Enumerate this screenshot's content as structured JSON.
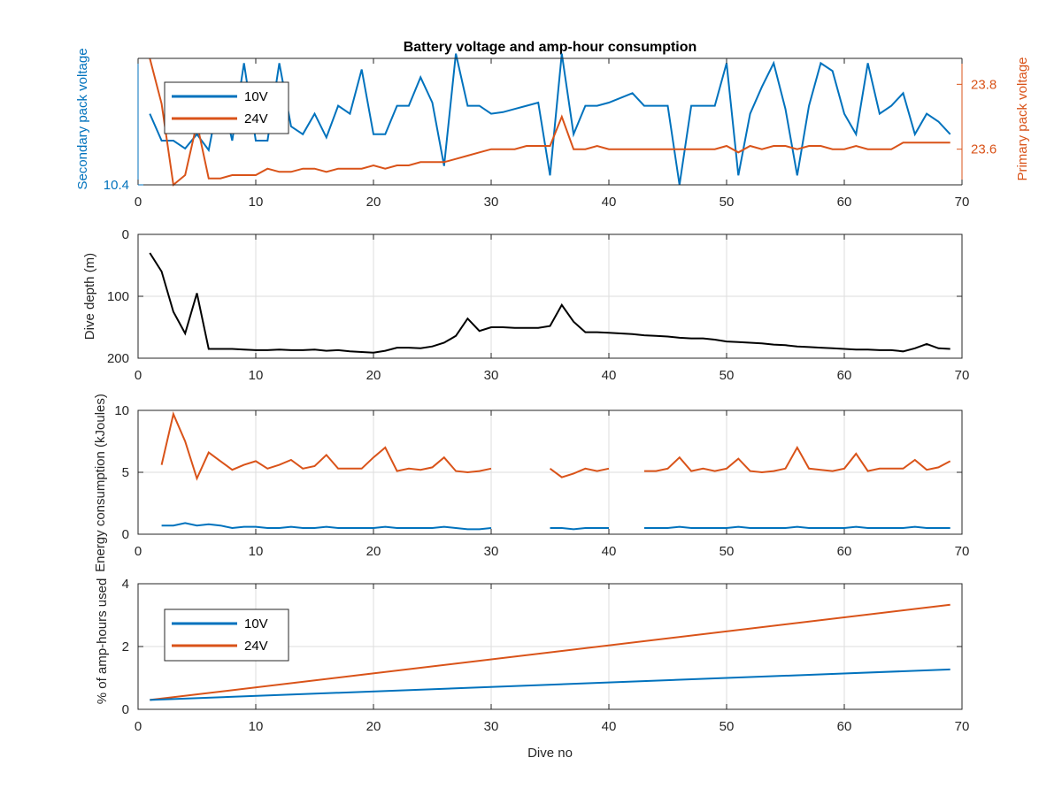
{
  "colors": {
    "v10": "#0072BD",
    "v24": "#D95319",
    "depth": "#000000",
    "axis": "#262626",
    "grid": "#dedede"
  },
  "chart_data": [
    {
      "type": "line",
      "title": "Battery voltage and amp-hour consumption",
      "xlabel": "",
      "xlim": [
        0,
        70
      ],
      "xticks": [
        "0",
        "10",
        "20",
        "30",
        "40",
        "50",
        "60",
        "70"
      ],
      "left_axis": {
        "label": "Secondary pack voltage",
        "ticks": [
          "10.4"
        ],
        "ylim": [
          10.4,
          11.2
        ]
      },
      "right_axis": {
        "label": "Primary pack voltage",
        "ticks": [
          "23.6",
          "23.8"
        ],
        "ylim": [
          23.49,
          23.88
        ]
      },
      "legend": {
        "placement": "top-left",
        "entries": [
          "10V",
          "24V"
        ]
      },
      "grid": false,
      "series": [
        {
          "name": "10V",
          "axis": "left",
          "x": [
            1,
            2,
            3,
            4,
            5,
            6,
            7,
            8,
            9,
            10,
            11,
            12,
            13,
            14,
            15,
            16,
            17,
            18,
            19,
            20,
            21,
            22,
            23,
            24,
            25,
            26,
            27,
            28,
            29,
            30,
            31,
            32,
            33,
            34,
            35,
            36,
            37,
            38,
            39,
            40,
            41,
            42,
            43,
            44,
            45,
            46,
            47,
            48,
            49,
            50,
            51,
            52,
            53,
            54,
            55,
            56,
            57,
            58,
            59,
            60,
            61,
            62,
            63,
            64,
            65,
            66,
            67,
            68,
            69
          ],
          "values": [
            10.85,
            10.68,
            10.68,
            10.63,
            10.72,
            10.62,
            11.0,
            10.68,
            11.17,
            10.68,
            10.68,
            11.17,
            10.77,
            10.72,
            10.85,
            10.7,
            10.9,
            10.85,
            11.13,
            10.72,
            10.72,
            10.9,
            10.9,
            11.08,
            10.92,
            10.52,
            11.23,
            10.9,
            10.9,
            10.85,
            10.86,
            10.88,
            10.9,
            10.92,
            10.46,
            11.23,
            10.72,
            10.9,
            10.9,
            10.92,
            10.95,
            10.98,
            10.9,
            10.9,
            10.9,
            10.4,
            10.9,
            10.9,
            10.9,
            11.17,
            10.46,
            10.85,
            11.02,
            11.17,
            10.88,
            10.46,
            10.9,
            11.17,
            11.12,
            10.85,
            10.72,
            11.17,
            10.85,
            10.9,
            10.98,
            10.72,
            10.85,
            10.8,
            10.72
          ]
        },
        {
          "name": "24V",
          "axis": "right",
          "x": [
            1,
            2,
            3,
            4,
            5,
            6,
            7,
            8,
            9,
            10,
            11,
            12,
            13,
            14,
            15,
            16,
            17,
            18,
            19,
            20,
            21,
            22,
            23,
            24,
            25,
            26,
            27,
            28,
            29,
            30,
            31,
            32,
            33,
            34,
            35,
            36,
            37,
            38,
            39,
            40,
            41,
            42,
            43,
            44,
            45,
            46,
            47,
            48,
            49,
            50,
            51,
            52,
            53,
            54,
            55,
            56,
            57,
            58,
            59,
            60,
            61,
            62,
            63,
            64,
            65,
            66,
            67,
            68,
            69
          ],
          "values": [
            23.88,
            23.74,
            23.49,
            23.52,
            23.68,
            23.51,
            23.51,
            23.52,
            23.52,
            23.52,
            23.54,
            23.53,
            23.53,
            23.54,
            23.54,
            23.53,
            23.54,
            23.54,
            23.54,
            23.55,
            23.54,
            23.55,
            23.55,
            23.56,
            23.56,
            23.56,
            23.57,
            23.58,
            23.59,
            23.6,
            23.6,
            23.6,
            23.61,
            23.61,
            23.61,
            23.7,
            23.6,
            23.6,
            23.61,
            23.6,
            23.6,
            23.6,
            23.6,
            23.6,
            23.6,
            23.6,
            23.6,
            23.6,
            23.6,
            23.61,
            23.59,
            23.61,
            23.6,
            23.61,
            23.61,
            23.6,
            23.61,
            23.61,
            23.6,
            23.6,
            23.61,
            23.6,
            23.6,
            23.6,
            23.62,
            23.62,
            23.62,
            23.62,
            23.62
          ]
        }
      ]
    },
    {
      "type": "line",
      "title": "",
      "xlabel": "",
      "ylabel": "Dive depth (m)",
      "xlim": [
        0,
        70
      ],
      "ylim": [
        0,
        200
      ],
      "y_reversed": true,
      "xticks": [
        "0",
        "10",
        "20",
        "30",
        "40",
        "50",
        "60",
        "70"
      ],
      "yticks": [
        "0",
        "100",
        "200"
      ],
      "grid": true,
      "series": [
        {
          "x": [
            1,
            2,
            3,
            4,
            5,
            6,
            7,
            8,
            9,
            10,
            11,
            12,
            13,
            14,
            15,
            16,
            17,
            18,
            19,
            20,
            21,
            22,
            23,
            24,
            25,
            26,
            27,
            28,
            29,
            30,
            31,
            32,
            33,
            34,
            35,
            36,
            37,
            38,
            39,
            40,
            41,
            42,
            43,
            44,
            45,
            46,
            47,
            48,
            49,
            50,
            51,
            52,
            53,
            54,
            55,
            56,
            57,
            58,
            59,
            60,
            61,
            62,
            63,
            64,
            65,
            66,
            67,
            68,
            69
          ],
          "values": [
            30,
            60,
            125,
            160,
            95,
            185,
            185,
            185,
            186,
            187,
            187,
            186,
            187,
            187,
            186,
            188,
            187,
            189,
            190,
            191,
            188,
            183,
            183,
            184,
            181,
            175,
            164,
            136,
            156,
            150,
            150,
            151,
            151,
            151,
            148,
            114,
            141,
            158,
            158,
            159,
            160,
            161,
            163,
            164,
            165,
            167,
            168,
            168,
            170,
            173,
            174,
            175,
            176,
            178,
            179,
            181,
            182,
            183,
            184,
            185,
            186,
            186,
            187,
            187,
            189,
            184,
            177,
            184,
            185
          ]
        }
      ]
    },
    {
      "type": "line",
      "title": "",
      "xlabel": "",
      "ylabel": "Energy consumption (kJoules)",
      "xlim": [
        0,
        70
      ],
      "ylim": [
        0,
        10
      ],
      "xticks": [
        "0",
        "10",
        "20",
        "30",
        "40",
        "50",
        "60",
        "70"
      ],
      "yticks": [
        "0",
        "5",
        "10"
      ],
      "grid": true,
      "series": [
        {
          "name": "24V",
          "x": [
            2,
            3,
            4,
            5,
            6,
            7,
            8,
            9,
            10,
            11,
            12,
            13,
            14,
            15,
            16,
            17,
            18,
            19,
            20,
            21,
            22,
            23,
            24,
            25,
            26,
            27,
            28,
            29,
            30,
            null,
            35,
            36,
            37,
            38,
            39,
            40,
            null,
            43,
            44,
            45,
            46,
            47,
            48,
            49,
            50,
            51,
            52,
            53,
            54,
            55,
            56,
            57,
            58,
            59,
            60,
            61,
            62,
            63,
            64,
            65,
            66,
            67,
            68,
            69
          ],
          "values": [
            5.6,
            9.7,
            7.5,
            4.5,
            6.6,
            5.9,
            5.2,
            5.6,
            5.9,
            5.3,
            5.6,
            6.0,
            5.3,
            5.5,
            6.4,
            5.3,
            5.3,
            5.3,
            6.2,
            7.0,
            5.1,
            5.3,
            5.2,
            5.4,
            6.2,
            5.1,
            5.0,
            5.1,
            5.3,
            null,
            5.3,
            4.6,
            4.9,
            5.3,
            5.1,
            5.3,
            null,
            5.1,
            5.1,
            5.3,
            6.2,
            5.1,
            5.3,
            5.1,
            5.3,
            6.1,
            5.1,
            5.0,
            5.1,
            5.3,
            7.0,
            5.3,
            5.2,
            5.1,
            5.3,
            6.5,
            5.1,
            5.3,
            5.3,
            5.3,
            6.0,
            5.2,
            5.4,
            5.9
          ]
        },
        {
          "name": "10V",
          "x": [
            2,
            3,
            4,
            5,
            6,
            7,
            8,
            9,
            10,
            11,
            12,
            13,
            14,
            15,
            16,
            17,
            18,
            19,
            20,
            21,
            22,
            23,
            24,
            25,
            26,
            27,
            28,
            29,
            30,
            null,
            35,
            36,
            37,
            38,
            39,
            40,
            null,
            43,
            44,
            45,
            46,
            47,
            48,
            49,
            50,
            51,
            52,
            53,
            54,
            55,
            56,
            57,
            58,
            59,
            60,
            61,
            62,
            63,
            64,
            65,
            66,
            67,
            68,
            69
          ],
          "values": [
            0.7,
            0.7,
            0.9,
            0.7,
            0.8,
            0.7,
            0.5,
            0.6,
            0.6,
            0.5,
            0.5,
            0.6,
            0.5,
            0.5,
            0.6,
            0.5,
            0.5,
            0.5,
            0.5,
            0.6,
            0.5,
            0.5,
            0.5,
            0.5,
            0.6,
            0.5,
            0.4,
            0.4,
            0.5,
            null,
            0.5,
            0.5,
            0.4,
            0.5,
            0.5,
            0.5,
            null,
            0.5,
            0.5,
            0.5,
            0.6,
            0.5,
            0.5,
            0.5,
            0.5,
            0.6,
            0.5,
            0.5,
            0.5,
            0.5,
            0.6,
            0.5,
            0.5,
            0.5,
            0.5,
            0.6,
            0.5,
            0.5,
            0.5,
            0.5,
            0.6,
            0.5,
            0.5,
            0.5
          ]
        }
      ]
    },
    {
      "type": "line",
      "title": "",
      "xlabel": "Dive no",
      "ylabel": "% of amp-hours used",
      "xlim": [
        0,
        70
      ],
      "ylim": [
        0,
        4
      ],
      "xticks": [
        "0",
        "10",
        "20",
        "30",
        "40",
        "50",
        "60",
        "70"
      ],
      "yticks": [
        "0",
        "2",
        "4"
      ],
      "grid": true,
      "legend": {
        "placement": "top-left",
        "entries": [
          "10V",
          "24V"
        ]
      },
      "series": [
        {
          "name": "10V",
          "x": [
            1,
            69
          ],
          "values": [
            0.3,
            1.27
          ]
        },
        {
          "name": "24V",
          "x": [
            1,
            69
          ],
          "values": [
            0.3,
            3.33
          ]
        }
      ]
    }
  ]
}
